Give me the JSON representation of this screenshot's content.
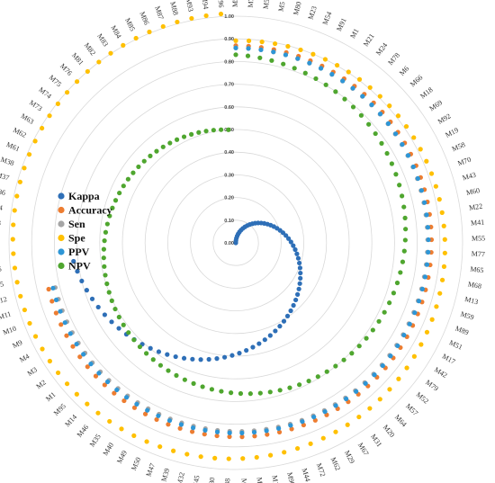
{
  "chart_data": {
    "type": "scatter",
    "subtype": "radar",
    "categories": [
      "M53",
      "M7",
      "M56",
      "M5",
      "M80",
      "M23",
      "M54",
      "M91",
      "M1",
      "M21",
      "M24",
      "M78",
      "M6",
      "M66",
      "M18",
      "M69",
      "M92",
      "M19",
      "M58",
      "M70",
      "M43",
      "M60",
      "M22",
      "M41",
      "M55",
      "M77",
      "M65",
      "M68",
      "M13",
      "M59",
      "M89",
      "M51",
      "M17",
      "M42",
      "M79",
      "M52",
      "M57",
      "M64",
      "M20",
      "M31",
      "M67",
      "M29",
      "M62",
      "M72",
      "M44",
      "M90",
      "M15",
      "M16",
      "M71",
      "M48",
      "M30",
      "M45",
      "M32",
      "M39",
      "M47",
      "M50",
      "M49",
      "M40",
      "M35",
      "M46",
      "M14",
      "M95",
      "M1",
      "M2",
      "M3",
      "M4",
      "M9",
      "M10",
      "M11",
      "M12",
      "M25",
      "M26",
      "M27",
      "M28",
      "M33",
      "M34",
      "M36",
      "M37",
      "M38",
      "M61",
      "M62",
      "M63",
      "M73",
      "M74",
      "M75",
      "M76",
      "M81",
      "M82",
      "M83",
      "M84",
      "M85",
      "M86",
      "M87",
      "M88",
      "M93",
      "M94",
      "M96"
    ],
    "ticks": [
      "0.00",
      "0.10",
      "0.20",
      "0.30",
      "0.40",
      "0.50",
      "0.60",
      "0.70",
      "0.80",
      "0.90",
      "1.00"
    ],
    "ylim": [
      0,
      1
    ],
    "grid": true,
    "legend_position": "left",
    "series": [
      {
        "name": "Kappa",
        "color": "#2e6fb7",
        "count": 72,
        "start": 0.0,
        "end": 0.72
      },
      {
        "name": "Accuracy",
        "color": "#ed7d31",
        "count": 70,
        "start": 0.87,
        "end": 0.85
      },
      {
        "name": "Sen",
        "color": "#a5a5a5",
        "count": 70,
        "start": 0.86,
        "end": 0.82
      },
      {
        "name": "Spe",
        "color": "#ffc000",
        "count": 97,
        "start": 0.88,
        "end": 1.0
      },
      {
        "name": "PPV",
        "color": "#2e96d6",
        "count": 70,
        "start": 0.86,
        "end": 0.83
      },
      {
        "name": "NPV",
        "color": "#4fa62f",
        "count": 97,
        "start": 0.83,
        "end": 0.5
      }
    ]
  }
}
